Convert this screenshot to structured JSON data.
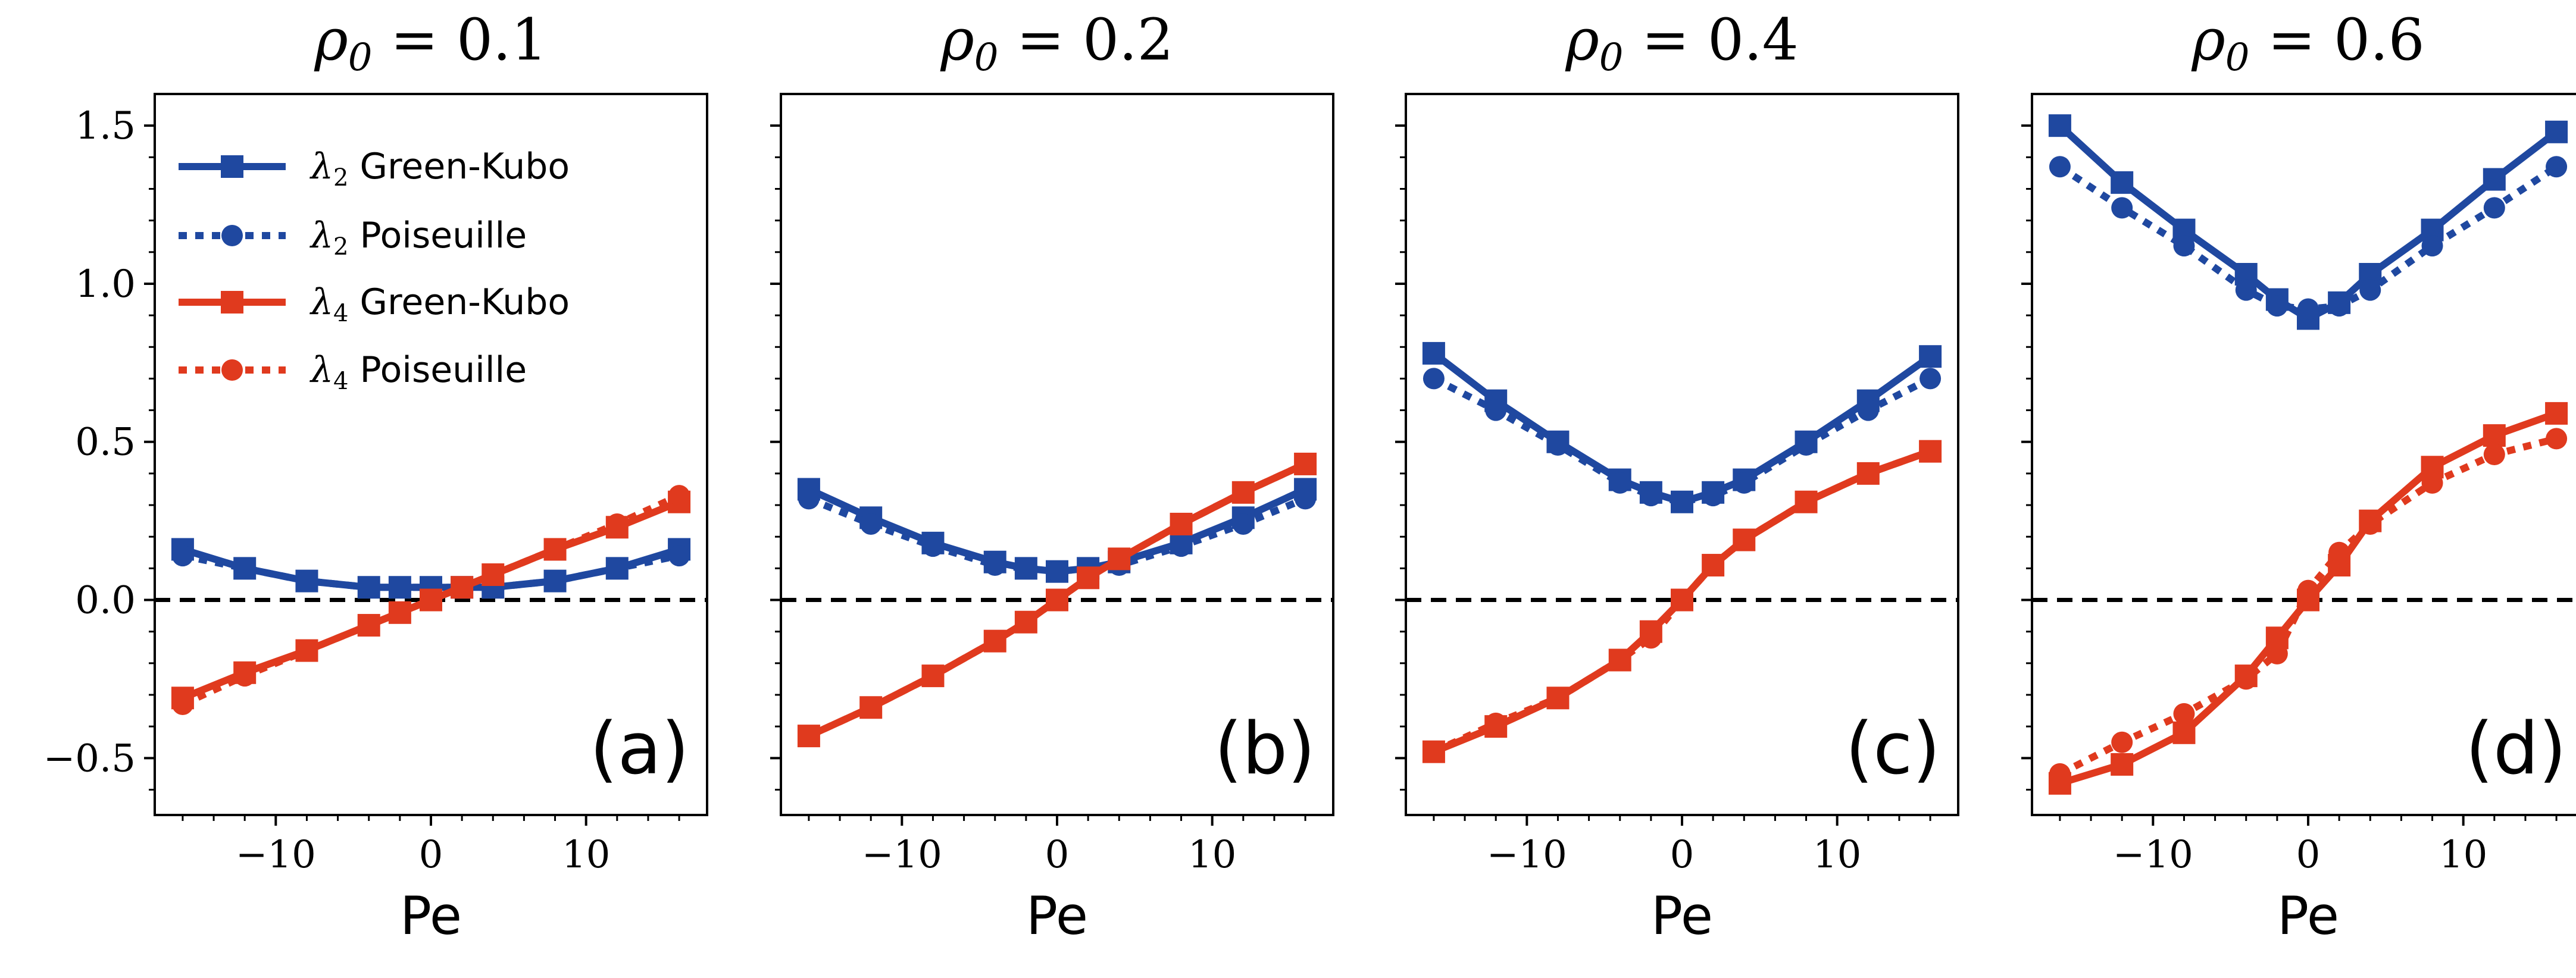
{
  "chart_data": {
    "type": "line",
    "layout": "1x4 panels, shared y-axis",
    "xlabel": "Pe",
    "ylim": [
      -0.68,
      1.6
    ],
    "xlim": [
      -17.8,
      17.8
    ],
    "yticks": [
      -0.5,
      0.0,
      0.5,
      1.0,
      1.5
    ],
    "ytick_labels": [
      "−0.5",
      "0.0",
      "0.5",
      "1.0",
      "1.5"
    ],
    "xticks": [
      -10,
      0,
      10
    ],
    "xtick_labels": [
      "−10",
      "0",
      "10"
    ],
    "reference_line": {
      "y": 0,
      "style": "dashed",
      "color": "#000000"
    },
    "colors": {
      "lambda2": "#1f48a0",
      "lambda4": "#e03a1e"
    },
    "legend": {
      "placement": "top-left of panel (a)",
      "entries": [
        {
          "symbol": "λ",
          "sub": "2",
          "text": "Green-Kubo",
          "color": "#1f48a0",
          "marker": "square",
          "line": "solid"
        },
        {
          "symbol": "λ",
          "sub": "2",
          "text": "Poiseuille",
          "color": "#1f48a0",
          "marker": "circle",
          "line": "dotted"
        },
        {
          "symbol": "λ",
          "sub": "4",
          "text": "Green-Kubo",
          "color": "#e03a1e",
          "marker": "square",
          "line": "solid"
        },
        {
          "symbol": "λ",
          "sub": "4",
          "text": "Poiseuille",
          "color": "#e03a1e",
          "marker": "circle",
          "line": "dotted"
        }
      ]
    },
    "panels": [
      {
        "title": "ρ0 = 0.1",
        "title_symbol": "ρ",
        "title_sub": "0",
        "title_value": " = 0.1",
        "label": "(a)",
        "x": [
          -16,
          -12,
          -8,
          -4,
          -2,
          0,
          2,
          4,
          8,
          12,
          16
        ],
        "series": [
          {
            "name": "λ2 Green-Kubo",
            "values": [
              0.16,
              0.1,
              0.06,
              0.04,
              0.04,
              0.04,
              0.04,
              0.04,
              0.06,
              0.1,
              0.16
            ]
          },
          {
            "name": "λ2 Poiseuille",
            "values": [
              0.14,
              0.1,
              0.06,
              0.04,
              0.04,
              0.04,
              0.04,
              0.04,
              0.06,
              0.1,
              0.14
            ]
          },
          {
            "name": "λ4 Green-Kubo",
            "values": [
              -0.31,
              -0.23,
              -0.16,
              -0.08,
              -0.04,
              0.0,
              0.04,
              0.08,
              0.16,
              0.23,
              0.31
            ]
          },
          {
            "name": "λ4 Poiseuille",
            "values": [
              -0.33,
              -0.24,
              -0.16,
              -0.08,
              -0.04,
              0.0,
              0.04,
              0.08,
              0.16,
              0.24,
              0.33
            ]
          }
        ]
      },
      {
        "title": "ρ0 = 0.2",
        "title_symbol": "ρ",
        "title_sub": "0",
        "title_value": " = 0.2",
        "label": "(b)",
        "x": [
          -16,
          -12,
          -8,
          -4,
          -2,
          0,
          2,
          4,
          8,
          12,
          16
        ],
        "series": [
          {
            "name": "λ2 Green-Kubo",
            "values": [
              0.35,
              0.26,
              0.18,
              0.12,
              0.1,
              0.09,
              0.1,
              0.12,
              0.18,
              0.26,
              0.35
            ]
          },
          {
            "name": "λ2 Poiseuille",
            "values": [
              0.32,
              0.24,
              0.17,
              0.11,
              0.1,
              0.09,
              0.1,
              0.11,
              0.17,
              0.24,
              0.32
            ]
          },
          {
            "name": "λ4 Green-Kubo",
            "values": [
              -0.43,
              -0.34,
              -0.24,
              -0.13,
              -0.07,
              0.0,
              0.07,
              0.13,
              0.24,
              0.34,
              0.43
            ]
          },
          {
            "name": "λ4 Poiseuille",
            "values": [
              -0.43,
              -0.34,
              -0.24,
              -0.13,
              -0.07,
              0.0,
              0.07,
              0.13,
              0.24,
              0.34,
              0.43
            ]
          }
        ]
      },
      {
        "title": "ρ0 = 0.4",
        "title_symbol": "ρ",
        "title_sub": "0",
        "title_value": " = 0.4",
        "label": "(c)",
        "x": [
          -16,
          -12,
          -8,
          -4,
          -2,
          0,
          2,
          4,
          8,
          12,
          16
        ],
        "series": [
          {
            "name": "λ2 Green-Kubo",
            "values": [
              0.78,
              0.63,
              0.5,
              0.38,
              0.34,
              0.31,
              0.34,
              0.38,
              0.5,
              0.63,
              0.77
            ]
          },
          {
            "name": "λ2 Poiseuille",
            "values": [
              0.7,
              0.6,
              0.49,
              0.37,
              0.33,
              0.31,
              0.33,
              0.37,
              0.49,
              0.6,
              0.7
            ]
          },
          {
            "name": "λ4 Green-Kubo",
            "values": [
              -0.48,
              -0.4,
              -0.31,
              -0.19,
              -0.1,
              0.0,
              0.11,
              0.19,
              0.31,
              0.4,
              0.47
            ]
          },
          {
            "name": "λ4 Poiseuille",
            "values": [
              -0.48,
              -0.39,
              -0.31,
              -0.19,
              -0.12,
              0.0,
              0.11,
              0.19,
              0.31,
              0.4,
              0.47
            ]
          }
        ]
      },
      {
        "title": "ρ0 = 0.6",
        "title_symbol": "ρ",
        "title_sub": "0",
        "title_value": " = 0.6",
        "label": "(d)",
        "x": [
          -16,
          -12,
          -8,
          -4,
          -2,
          0,
          2,
          4,
          8,
          12,
          16
        ],
        "series": [
          {
            "name": "λ2 Green-Kubo",
            "values": [
              1.5,
              1.32,
              1.17,
              1.03,
              0.95,
              0.89,
              0.94,
              1.03,
              1.17,
              1.33,
              1.48
            ]
          },
          {
            "name": "λ2 Poiseuille",
            "values": [
              1.37,
              1.24,
              1.12,
              0.98,
              0.93,
              0.92,
              0.93,
              0.98,
              1.12,
              1.24,
              1.37
            ]
          },
          {
            "name": "λ4 Green-Kubo",
            "values": [
              -0.58,
              -0.52,
              -0.42,
              -0.24,
              -0.12,
              0.0,
              0.11,
              0.25,
              0.42,
              0.52,
              0.59
            ]
          },
          {
            "name": "λ4 Poiseuille",
            "values": [
              -0.55,
              -0.45,
              -0.36,
              -0.25,
              -0.17,
              0.03,
              0.15,
              0.24,
              0.37,
              0.46,
              0.51
            ]
          }
        ]
      }
    ]
  }
}
